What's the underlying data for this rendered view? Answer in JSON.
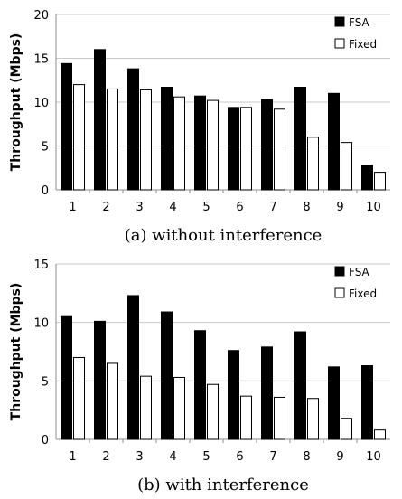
{
  "chart_data": [
    {
      "type": "bar",
      "caption": "(a) without interference",
      "ylabel": "Throughput (Mbps)",
      "ylim": [
        0,
        20
      ],
      "yticks": [
        0,
        5,
        10,
        15,
        20
      ],
      "grid": true,
      "legend_position": "top-right",
      "categories": [
        "1",
        "2",
        "3",
        "4",
        "5",
        "6",
        "7",
        "8",
        "9",
        "10"
      ],
      "series": [
        {
          "name": "FSA",
          "color": "#000000",
          "values": [
            14.4,
            16.0,
            13.8,
            11.7,
            10.7,
            9.4,
            10.3,
            11.7,
            11.0,
            2.8
          ]
        },
        {
          "name": "Fixed",
          "color": "#ffffff",
          "values": [
            12.0,
            11.5,
            11.4,
            10.6,
            10.2,
            9.4,
            9.2,
            6.0,
            5.4,
            2.0
          ]
        }
      ]
    },
    {
      "type": "bar",
      "caption": "(b) with interference",
      "ylabel": "Throughput (Mbps)",
      "ylim": [
        0,
        15
      ],
      "yticks": [
        0,
        5,
        10,
        15
      ],
      "grid": true,
      "legend_position": "top-right",
      "categories": [
        "1",
        "2",
        "3",
        "4",
        "5",
        "6",
        "7",
        "8",
        "9",
        "10"
      ],
      "series": [
        {
          "name": "FSA",
          "color": "#000000",
          "values": [
            10.5,
            10.1,
            12.3,
            10.9,
            9.3,
            7.6,
            7.9,
            9.2,
            6.2,
            6.3
          ]
        },
        {
          "name": "Fixed",
          "color": "#ffffff",
          "values": [
            7.0,
            6.5,
            5.4,
            5.3,
            4.7,
            3.7,
            3.6,
            3.5,
            1.8,
            0.8
          ]
        }
      ]
    }
  ]
}
